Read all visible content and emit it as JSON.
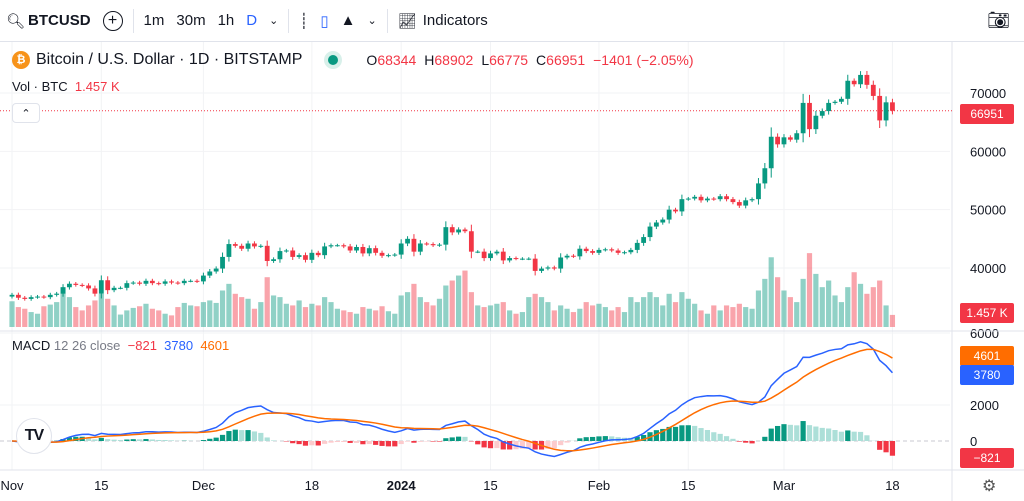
{
  "toolbar": {
    "symbol": "BTCUSD",
    "intervals": [
      "1m",
      "30m",
      "1h",
      "D"
    ],
    "active_interval": "D",
    "indicators_label": "Indicators",
    "icons": [
      "search-icon",
      "add-compare-icon",
      "bar-style-icon",
      "candle-style-icon",
      "area-style-icon",
      "indicators-icon",
      "camera-icon"
    ]
  },
  "legend": {
    "title": "Bitcoin / U.S. Dollar · 1D · BITSTAMP",
    "o_label": "O",
    "o": "68344",
    "h_label": "H",
    "h": "68902",
    "l_label": "L",
    "l": "66775",
    "c_label": "C",
    "c": "66951",
    "change": "−1401 (−2.05%)",
    "vol_label": "Vol · BTC",
    "vol_value": "1.457 K",
    "collapse_icon": "chevron-up"
  },
  "macd_legend": {
    "label": "MACD",
    "params": "12 26 close",
    "hist": "−821",
    "macd": "3780",
    "signal": "4601"
  },
  "price_tag": "66951",
  "volume_tag": "1.457 K",
  "macd_tags": {
    "signal": "4601",
    "macd": "3780",
    "hist": "−821"
  },
  "colors": {
    "up": "#089981",
    "down": "#f23645",
    "macd": "#2962ff",
    "signal": "#ff6d00"
  },
  "chart_data": {
    "type": "candlestick",
    "start_date": "2023-11-01",
    "end_date": "2024-03-18",
    "price_axis": {
      "ticks": [
        40000,
        50000,
        60000,
        70000
      ],
      "range": [
        33000,
        75000
      ]
    },
    "macd_axis": {
      "ticks": [
        0,
        2000,
        6000
      ]
    },
    "time_ticks": [
      {
        "label": "Nov",
        "date": "2023-11-01"
      },
      {
        "label": "15",
        "date": "2023-11-15"
      },
      {
        "label": "Dec",
        "date": "2023-12-01"
      },
      {
        "label": "18",
        "date": "2023-12-18"
      },
      {
        "label": "2024",
        "date": "2024-01-01",
        "bold": true
      },
      {
        "label": "15",
        "date": "2024-01-15"
      },
      {
        "label": "Feb",
        "date": "2024-02-01"
      },
      {
        "label": "15",
        "date": "2024-02-15"
      },
      {
        "label": "Mar",
        "date": "2024-03-01"
      },
      {
        "label": "18",
        "date": "2024-03-18"
      }
    ],
    "close": [
      35400,
      34900,
      34700,
      35000,
      35100,
      35000,
      35400,
      35600,
      36700,
      37300,
      37100,
      37000,
      36500,
      35600,
      37900,
      36200,
      36600,
      36600,
      37400,
      37500,
      37300,
      37800,
      37400,
      37300,
      37700,
      37500,
      37400,
      37800,
      37800,
      37700,
      38700,
      39400,
      39900,
      41900,
      44100,
      43800,
      43300,
      44200,
      43700,
      43800,
      41200,
      41500,
      42900,
      43000,
      41900,
      42200,
      41400,
      42600,
      42200,
      43700,
      43900,
      43900,
      43700,
      43000,
      43600,
      42500,
      43400,
      42600,
      42100,
      42200,
      42300,
      44200,
      45000,
      42800,
      44200,
      44100,
      43900,
      44000,
      47000,
      46100,
      46600,
      46300,
      42800,
      42800,
      41700,
      42500,
      42800,
      41300,
      41700,
      41600,
      41600,
      41600,
      39500,
      39900,
      40100,
      39900,
      41800,
      42100,
      42000,
      43300,
      42900,
      42600,
      43100,
      43200,
      43000,
      42600,
      42700,
      43100,
      44300,
      45300,
      47100,
      47800,
      48300,
      50000,
      49700,
      51800,
      51900,
      52200,
      51600,
      51900,
      51800,
      52300,
      51800,
      51300,
      50700,
      51600,
      51800,
      54500,
      57100,
      62500,
      61200,
      62400,
      62000,
      63100,
      68300,
      63800,
      66100,
      66900,
      68300,
      68500,
      69000,
      72100,
      71500,
      73100,
      71400,
      69500,
      65300,
      68400,
      66951
    ],
    "volume_k": [
      3.1,
      2.4,
      2.2,
      1.8,
      1.6,
      2.5,
      2.7,
      3.0,
      4.8,
      3.6,
      2.4,
      2.0,
      2.6,
      3.2,
      4.0,
      3.4,
      2.6,
      1.5,
      2.0,
      2.3,
      2.5,
      2.8,
      2.2,
      2.0,
      1.6,
      1.4,
      2.4,
      2.9,
      2.6,
      2.5,
      3.0,
      3.2,
      2.9,
      4.4,
      5.2,
      4.0,
      3.6,
      3.4,
      2.2,
      3.0,
      6.0,
      3.8,
      3.6,
      2.8,
      2.6,
      3.2,
      2.4,
      2.8,
      2.6,
      3.6,
      3.0,
      2.2,
      2.0,
      1.8,
      1.6,
      2.4,
      2.2,
      2.0,
      2.5,
      1.9,
      1.6,
      3.8,
      4.2,
      5.2,
      3.6,
      3.0,
      2.6,
      3.4,
      5.0,
      5.6,
      6.2,
      6.8,
      4.2,
      2.6,
      2.4,
      2.6,
      2.8,
      3.0,
      2.0,
      1.6,
      1.8,
      3.6,
      4.0,
      3.6,
      3.0,
      2.0,
      2.6,
      2.2,
      1.8,
      2.2,
      3.0,
      2.6,
      2.8,
      2.4,
      2.0,
      2.4,
      1.8,
      3.6,
      3.0,
      3.6,
      4.2,
      3.6,
      2.6,
      4.0,
      3.0,
      4.2,
      3.4,
      2.8,
      2.0,
      1.6,
      2.6,
      2.0,
      2.6,
      2.4,
      2.8,
      2.4,
      2.2,
      4.4,
      5.8,
      8.4,
      6.0,
      4.4,
      3.6,
      3.0,
      5.8,
      8.9,
      6.4,
      4.8,
      5.6,
      3.8,
      3.0,
      4.8,
      6.6,
      5.2,
      4.0,
      4.8,
      5.6,
      2.6,
      1.457
    ]
  }
}
